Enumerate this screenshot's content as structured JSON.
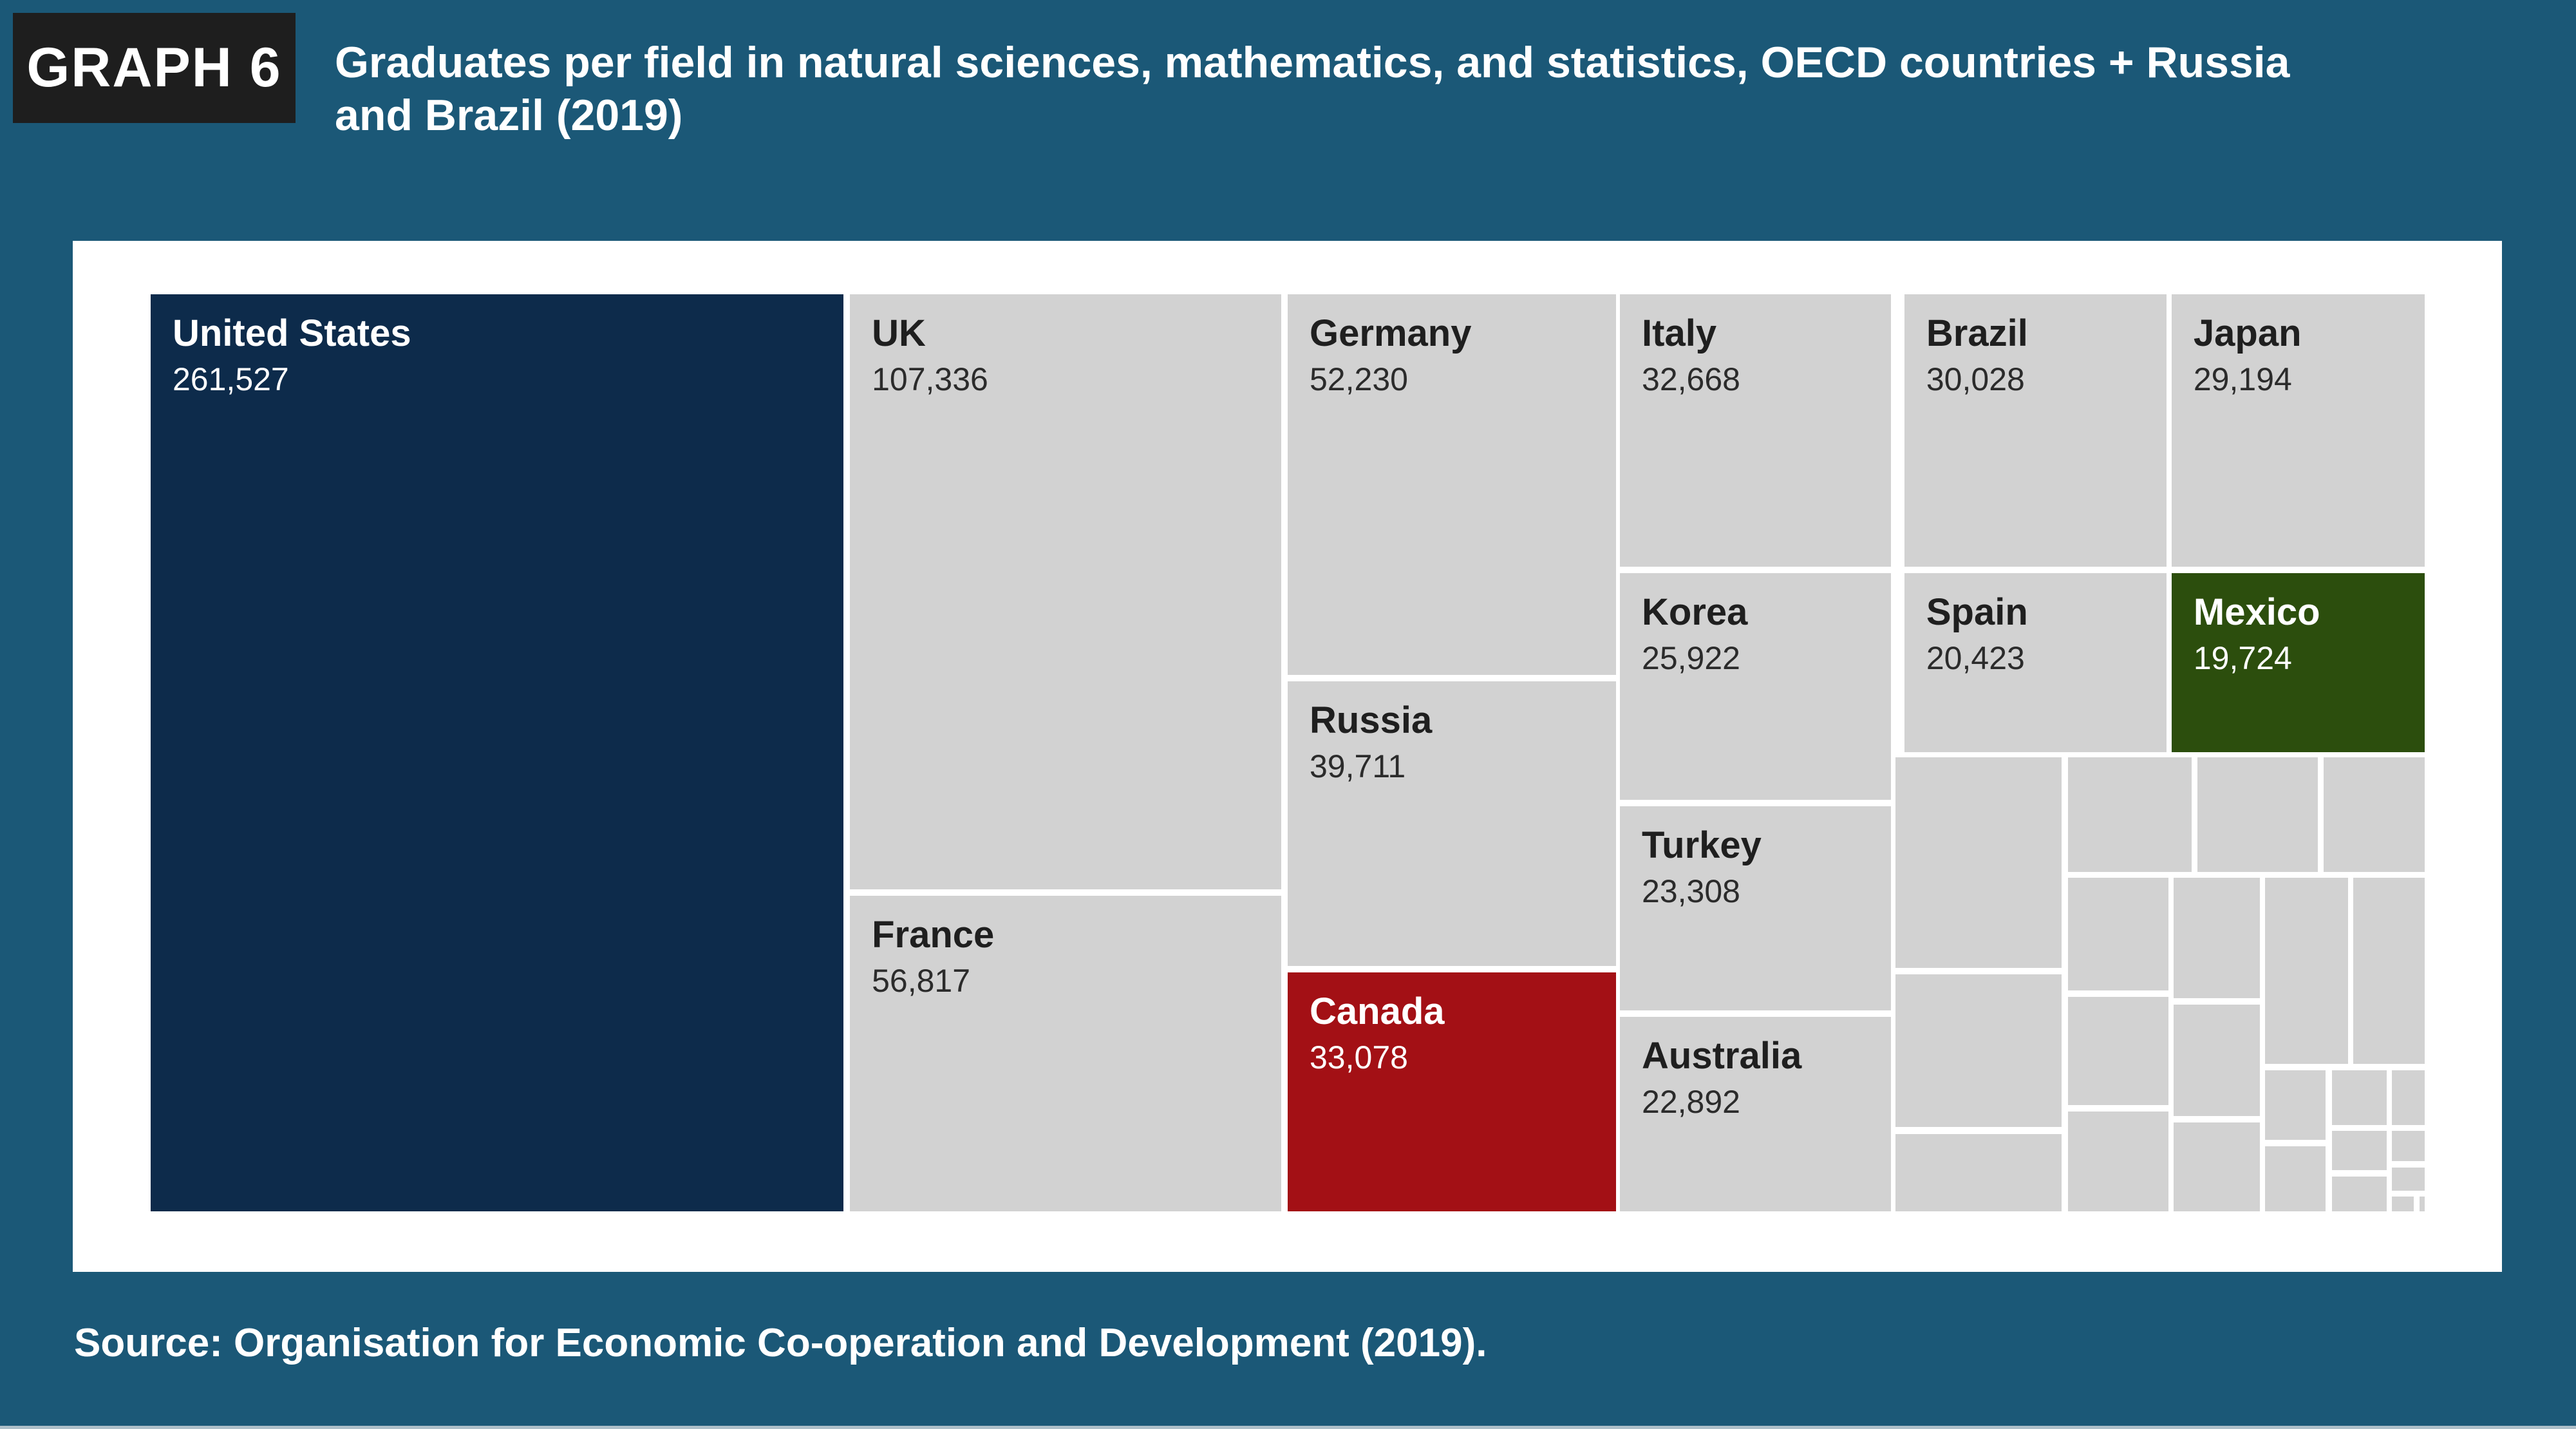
{
  "header": {
    "badge": "GRAPH 6",
    "title_line1": "Graduates per field in natural sciences, mathematics, and statistics, OECD countries + Russia",
    "title_line2": "and Brazil (2019)"
  },
  "source": "Source: Organisation for Economic Co-operation and Development (2019).",
  "colors": {
    "background": "#1B5877",
    "badge_bg": "#1E1E1E",
    "panel_bg": "#FFFFFF",
    "gray": "#D2D2D2",
    "navy": "#0D2B4B",
    "red": "#A31015",
    "green": "#2C4E0D",
    "label_dark": "#1F1F1F",
    "label_light": "#FFFFFF"
  },
  "chart_data": {
    "type": "treemap",
    "title": "Graduates per field in natural sciences, mathematics, and statistics, OECD countries + Russia and Brazil (2019)",
    "unit": "graduates (2019)",
    "legend_position": "none",
    "blocks": [
      {
        "name": "United States",
        "value": 261527,
        "display": "261,527",
        "color": "navy",
        "text": "light",
        "rect": {
          "l": 0,
          "t": 0,
          "w": 30.46,
          "h": 100
        }
      },
      {
        "name": "UK",
        "value": 107336,
        "display": "107,336",
        "color": "gray",
        "text": "dark",
        "rect": {
          "l": 30.75,
          "t": 0,
          "w": 18.97,
          "h": 64.89
        }
      },
      {
        "name": "France",
        "value": 56817,
        "display": "56,817",
        "color": "gray",
        "text": "dark",
        "rect": {
          "l": 30.75,
          "t": 65.59,
          "w": 18.97,
          "h": 34.41
        }
      },
      {
        "name": "Germany",
        "value": 52230,
        "display": "52,230",
        "color": "gray",
        "text": "dark",
        "rect": {
          "l": 50.0,
          "t": 0,
          "w": 14.44,
          "h": 41.5
        }
      },
      {
        "name": "Russia",
        "value": 39711,
        "display": "39,711",
        "color": "gray",
        "text": "dark",
        "rect": {
          "l": 50.0,
          "t": 42.21,
          "w": 14.44,
          "h": 31.04
        }
      },
      {
        "name": "Canada",
        "value": 33078,
        "display": "33,078",
        "color": "red",
        "text": "light",
        "rect": {
          "l": 50.0,
          "t": 73.95,
          "w": 14.44,
          "h": 26.05
        }
      },
      {
        "name": "Italy",
        "value": 32668,
        "display": "32,668",
        "color": "gray",
        "text": "dark",
        "rect": {
          "l": 64.61,
          "t": 0,
          "w": 11.92,
          "h": 29.71
        }
      },
      {
        "name": "Korea",
        "value": 25922,
        "display": "25,922",
        "color": "gray",
        "text": "dark",
        "rect": {
          "l": 64.61,
          "t": 30.41,
          "w": 11.92,
          "h": 24.72
        }
      },
      {
        "name": "Turkey",
        "value": 23308,
        "display": "23,308",
        "color": "gray",
        "text": "dark",
        "rect": {
          "l": 64.61,
          "t": 55.83,
          "w": 11.92,
          "h": 22.26
        }
      },
      {
        "name": "Australia",
        "value": 22892,
        "display": "22,892",
        "color": "gray",
        "text": "dark",
        "rect": {
          "l": 64.61,
          "t": 78.79,
          "w": 11.92,
          "h": 21.21
        }
      },
      {
        "name": "Brazil",
        "value": 30028,
        "display": "30,028",
        "color": "gray",
        "text": "dark",
        "rect": {
          "l": 77.12,
          "t": 0,
          "w": 11.52,
          "h": 29.71
        }
      },
      {
        "name": "Spain",
        "value": 20423,
        "display": "20,423",
        "color": "gray",
        "text": "dark",
        "rect": {
          "l": 77.12,
          "t": 30.41,
          "w": 11.52,
          "h": 19.52
        }
      },
      {
        "name": "Japan",
        "value": 29194,
        "display": "29,194",
        "color": "gray",
        "text": "dark",
        "rect": {
          "l": 88.87,
          "t": 0,
          "w": 11.13,
          "h": 29.71
        }
      },
      {
        "name": "Mexico",
        "value": 19724,
        "display": "19,724",
        "color": "green",
        "text": "light",
        "rect": {
          "l": 88.87,
          "t": 30.41,
          "w": 11.13,
          "h": 19.52
        }
      }
    ],
    "unlabeled_blocks": [
      {
        "rect": {
          "l": 76.73,
          "t": 50.49,
          "w": 7.3,
          "h": 22.96
        }
      },
      {
        "rect": {
          "l": 76.73,
          "t": 74.16,
          "w": 7.3,
          "h": 16.64
        }
      },
      {
        "rect": {
          "l": 76.73,
          "t": 91.57,
          "w": 7.3,
          "h": 8.43
        }
      },
      {
        "rect": {
          "l": 84.31,
          "t": 50.49,
          "w": 5.44,
          "h": 12.5
        }
      },
      {
        "rect": {
          "l": 90.01,
          "t": 50.49,
          "w": 5.29,
          "h": 12.5
        }
      },
      {
        "rect": {
          "l": 95.56,
          "t": 50.49,
          "w": 4.44,
          "h": 12.5
        }
      },
      {
        "rect": {
          "l": 84.31,
          "t": 63.62,
          "w": 4.42,
          "h": 12.29
        }
      },
      {
        "rect": {
          "l": 84.31,
          "t": 76.62,
          "w": 4.42,
          "h": 11.8
        }
      },
      {
        "rect": {
          "l": 84.31,
          "t": 89.12,
          "w": 4.42,
          "h": 10.88
        }
      },
      {
        "rect": {
          "l": 88.96,
          "t": 63.62,
          "w": 3.79,
          "h": 13.13
        }
      },
      {
        "rect": {
          "l": 88.96,
          "t": 77.46,
          "w": 3.79,
          "h": 12.15
        }
      },
      {
        "rect": {
          "l": 88.96,
          "t": 90.31,
          "w": 3.79,
          "h": 9.69
        }
      },
      {
        "rect": {
          "l": 92.98,
          "t": 63.62,
          "w": 3.65,
          "h": 20.29
        }
      },
      {
        "rect": {
          "l": 96.86,
          "t": 63.62,
          "w": 3.14,
          "h": 20.29
        }
      },
      {
        "rect": {
          "l": 92.98,
          "t": 84.62,
          "w": 2.66,
          "h": 7.58
        }
      },
      {
        "rect": {
          "l": 92.98,
          "t": 92.91,
          "w": 2.66,
          "h": 7.09
        }
      },
      {
        "rect": {
          "l": 95.92,
          "t": 84.62,
          "w": 2.41,
          "h": 5.97
        }
      },
      {
        "rect": {
          "l": 95.92,
          "t": 91.22,
          "w": 2.41,
          "h": 4.28
        }
      },
      {
        "rect": {
          "l": 95.92,
          "t": 96.21,
          "w": 2.41,
          "h": 3.79
        }
      },
      {
        "rect": {
          "l": 98.56,
          "t": 84.62,
          "w": 1.44,
          "h": 5.97
        }
      },
      {
        "rect": {
          "l": 98.56,
          "t": 91.22,
          "w": 1.44,
          "h": 3.3
        }
      },
      {
        "rect": {
          "l": 98.56,
          "t": 95.22,
          "w": 1.44,
          "h": 2.53
        }
      },
      {
        "rect": {
          "l": 98.56,
          "t": 98.38,
          "w": 0.96,
          "h": 1.62
        }
      },
      {
        "rect": {
          "l": 99.77,
          "t": 98.38,
          "w": 0.23,
          "h": 1.62
        }
      }
    ]
  }
}
